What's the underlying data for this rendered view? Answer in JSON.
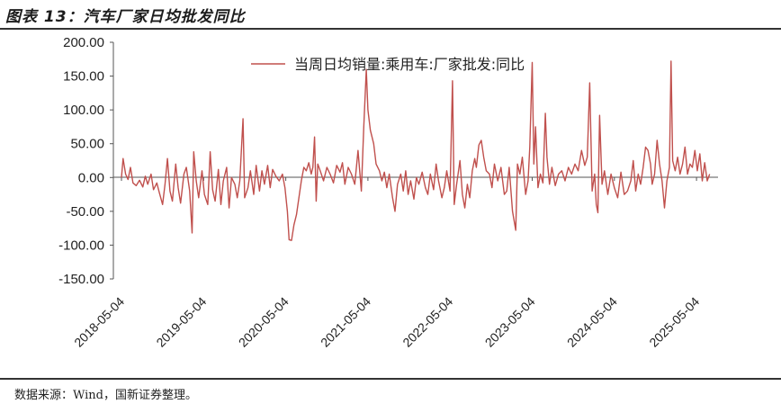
{
  "figure_title": "图表 13：汽车厂家日均批发同比",
  "source_note": "数据来源：Wind，国新证券整理。",
  "chart_data": {
    "type": "line",
    "ylim": [
      -150,
      200
    ],
    "y_ticks": [
      "200.00",
      "150.00",
      "100.00",
      "50.00",
      "0.00",
      "-50.00",
      "-100.00",
      "-150.00"
    ],
    "x_ticks": [
      "2018-05-04",
      "2019-05-04",
      "2020-05-04",
      "2021-05-04",
      "2022-05-04",
      "2023-05-04",
      "2024-05-04",
      "2025-05-04"
    ],
    "legend_placement": "top",
    "grid": false,
    "series": [
      {
        "name": "当周日均销量:乘用车:厂家批发:同比",
        "color": "#c0504d",
        "points": [
          [
            2018.34,
            0
          ],
          [
            2018.36,
            28
          ],
          [
            2018.39,
            5
          ],
          [
            2018.42,
            -3
          ],
          [
            2018.45,
            15
          ],
          [
            2018.48,
            -8
          ],
          [
            2018.52,
            -12
          ],
          [
            2018.56,
            -4
          ],
          [
            2018.6,
            -14
          ],
          [
            2018.63,
            2
          ],
          [
            2018.66,
            -10
          ],
          [
            2018.7,
            5
          ],
          [
            2018.73,
            -18
          ],
          [
            2018.77,
            -8
          ],
          [
            2018.8,
            -22
          ],
          [
            2018.84,
            -40
          ],
          [
            2018.87,
            -10
          ],
          [
            2018.9,
            28
          ],
          [
            2018.93,
            -20
          ],
          [
            2018.96,
            -35
          ],
          [
            2019.0,
            20
          ],
          [
            2019.03,
            -15
          ],
          [
            2019.06,
            -38
          ],
          [
            2019.1,
            5
          ],
          [
            2019.13,
            15
          ],
          [
            2019.17,
            -20
          ],
          [
            2019.2,
            -82
          ],
          [
            2019.22,
            38
          ],
          [
            2019.25,
            -5
          ],
          [
            2019.28,
            -30
          ],
          [
            2019.32,
            10
          ],
          [
            2019.35,
            -25
          ],
          [
            2019.39,
            -40
          ],
          [
            2019.42,
            38
          ],
          [
            2019.45,
            -18
          ],
          [
            2019.48,
            -35
          ],
          [
            2019.52,
            12
          ],
          [
            2019.55,
            -40
          ],
          [
            2019.58,
            -5
          ],
          [
            2019.62,
            15
          ],
          [
            2019.65,
            -45
          ],
          [
            2019.68,
            0
          ],
          [
            2019.72,
            -10
          ],
          [
            2019.75,
            -30
          ],
          [
            2019.78,
            -5
          ],
          [
            2019.82,
            87
          ],
          [
            2019.84,
            -30
          ],
          [
            2019.88,
            -15
          ],
          [
            2019.91,
            10
          ],
          [
            2019.95,
            -25
          ],
          [
            2019.98,
            18
          ],
          [
            2020.02,
            -20
          ],
          [
            2020.05,
            10
          ],
          [
            2020.08,
            -10
          ],
          [
            2020.12,
            18
          ],
          [
            2020.15,
            -15
          ],
          [
            2020.18,
            12
          ],
          [
            2020.22,
            2
          ],
          [
            2020.26,
            -5
          ],
          [
            2020.3,
            5
          ],
          [
            2020.33,
            -15
          ],
          [
            2020.36,
            -50
          ],
          [
            2020.38,
            -92
          ],
          [
            2020.41,
            -93
          ],
          [
            2020.44,
            -70
          ],
          [
            2020.47,
            -55
          ],
          [
            2020.5,
            -30
          ],
          [
            2020.53,
            -5
          ],
          [
            2020.56,
            15
          ],
          [
            2020.59,
            10
          ],
          [
            2020.62,
            22
          ],
          [
            2020.65,
            5
          ],
          [
            2020.67,
            15
          ],
          [
            2020.69,
            60
          ],
          [
            2020.71,
            -35
          ],
          [
            2020.73,
            20
          ],
          [
            2020.76,
            10
          ],
          [
            2020.8,
            -5
          ],
          [
            2020.84,
            15
          ],
          [
            2020.88,
            5
          ],
          [
            2020.92,
            -8
          ],
          [
            2020.96,
            18
          ],
          [
            2021.0,
            8
          ],
          [
            2021.03,
            22
          ],
          [
            2021.06,
            -10
          ],
          [
            2021.1,
            15
          ],
          [
            2021.14,
            5
          ],
          [
            2021.18,
            -10
          ],
          [
            2021.22,
            40
          ],
          [
            2021.26,
            -20
          ],
          [
            2021.29,
            75
          ],
          [
            2021.32,
            160
          ],
          [
            2021.34,
            100
          ],
          [
            2021.37,
            70
          ],
          [
            2021.41,
            50
          ],
          [
            2021.44,
            20
          ],
          [
            2021.48,
            10
          ],
          [
            2021.51,
            -5
          ],
          [
            2021.54,
            8
          ],
          [
            2021.57,
            -15
          ],
          [
            2021.6,
            5
          ],
          [
            2021.64,
            -30
          ],
          [
            2021.67,
            -50
          ],
          [
            2021.7,
            -10
          ],
          [
            2021.74,
            5
          ],
          [
            2021.77,
            -20
          ],
          [
            2021.8,
            10
          ],
          [
            2021.83,
            -25
          ],
          [
            2021.86,
            -5
          ],
          [
            2021.9,
            -32
          ],
          [
            2021.93,
            0
          ],
          [
            2021.96,
            -10
          ],
          [
            2022.0,
            8
          ],
          [
            2022.04,
            -15
          ],
          [
            2022.07,
            -25
          ],
          [
            2022.1,
            5
          ],
          [
            2022.14,
            -18
          ],
          [
            2022.17,
            20
          ],
          [
            2022.2,
            -5
          ],
          [
            2022.24,
            -30
          ],
          [
            2022.27,
            -15
          ],
          [
            2022.3,
            10
          ],
          [
            2022.34,
            -20
          ],
          [
            2022.37,
            143
          ],
          [
            2022.39,
            -40
          ],
          [
            2022.42,
            -10
          ],
          [
            2022.46,
            25
          ],
          [
            2022.49,
            -25
          ],
          [
            2022.52,
            -45
          ],
          [
            2022.55,
            -10
          ],
          [
            2022.58,
            -30
          ],
          [
            2022.61,
            10
          ],
          [
            2022.64,
            28
          ],
          [
            2022.66,
            15
          ],
          [
            2022.69,
            48
          ],
          [
            2022.72,
            55
          ],
          [
            2022.75,
            30
          ],
          [
            2022.78,
            10
          ],
          [
            2022.82,
            5
          ],
          [
            2022.85,
            -15
          ],
          [
            2022.88,
            20
          ],
          [
            2022.92,
            -5
          ],
          [
            2022.96,
            15
          ],
          [
            2023.0,
            -25
          ],
          [
            2023.03,
            -20
          ],
          [
            2023.06,
            15
          ],
          [
            2023.1,
            -50
          ],
          [
            2023.14,
            -78
          ],
          [
            2023.16,
            20
          ],
          [
            2023.19,
            5
          ],
          [
            2023.22,
            30
          ],
          [
            2023.26,
            -25
          ],
          [
            2023.29,
            -5
          ],
          [
            2023.31,
            45
          ],
          [
            2023.34,
            170
          ],
          [
            2023.36,
            20
          ],
          [
            2023.38,
            75
          ],
          [
            2023.41,
            -15
          ],
          [
            2023.44,
            5
          ],
          [
            2023.47,
            -8
          ],
          [
            2023.5,
            95
          ],
          [
            2023.52,
            30
          ],
          [
            2023.55,
            -10
          ],
          [
            2023.58,
            15
          ],
          [
            2023.62,
            -12
          ],
          [
            2023.66,
            5
          ],
          [
            2023.7,
            10
          ],
          [
            2023.74,
            -5
          ],
          [
            2023.78,
            15
          ],
          [
            2023.82,
            5
          ],
          [
            2023.86,
            20
          ],
          [
            2023.9,
            10
          ],
          [
            2023.94,
            40
          ],
          [
            2023.98,
            18
          ],
          [
            2024.01,
            30
          ],
          [
            2024.04,
            140
          ],
          [
            2024.07,
            -20
          ],
          [
            2024.1,
            5
          ],
          [
            2024.12,
            -40
          ],
          [
            2024.14,
            -52
          ],
          [
            2024.16,
            92
          ],
          [
            2024.19,
            -10
          ],
          [
            2024.22,
            10
          ],
          [
            2024.26,
            -25
          ],
          [
            2024.3,
            5
          ],
          [
            2024.34,
            -15
          ],
          [
            2024.38,
            -30
          ],
          [
            2024.42,
            8
          ],
          [
            2024.46,
            -25
          ],
          [
            2024.5,
            -20
          ],
          [
            2024.54,
            -5
          ],
          [
            2024.57,
            25
          ],
          [
            2024.6,
            -20
          ],
          [
            2024.63,
            5
          ],
          [
            2024.66,
            -10
          ],
          [
            2024.69,
            15
          ],
          [
            2024.72,
            45
          ],
          [
            2024.75,
            40
          ],
          [
            2024.78,
            20
          ],
          [
            2024.8,
            -10
          ],
          [
            2024.83,
            5
          ],
          [
            2024.86,
            55
          ],
          [
            2024.89,
            20
          ],
          [
            2024.92,
            -5
          ],
          [
            2024.95,
            -45
          ],
          [
            2024.98,
            -5
          ],
          [
            2025.01,
            15
          ],
          [
            2025.03,
            172
          ],
          [
            2025.05,
            25
          ],
          [
            2025.08,
            10
          ],
          [
            2025.11,
            30
          ],
          [
            2025.14,
            5
          ],
          [
            2025.17,
            20
          ],
          [
            2025.2,
            45
          ],
          [
            2025.23,
            5
          ],
          [
            2025.26,
            20
          ],
          [
            2025.29,
            15
          ],
          [
            2025.32,
            40
          ],
          [
            2025.35,
            10
          ],
          [
            2025.38,
            35
          ],
          [
            2025.41,
            -5
          ],
          [
            2025.44,
            22
          ],
          [
            2025.47,
            -5
          ],
          [
            2025.5,
            5
          ]
        ]
      }
    ]
  }
}
